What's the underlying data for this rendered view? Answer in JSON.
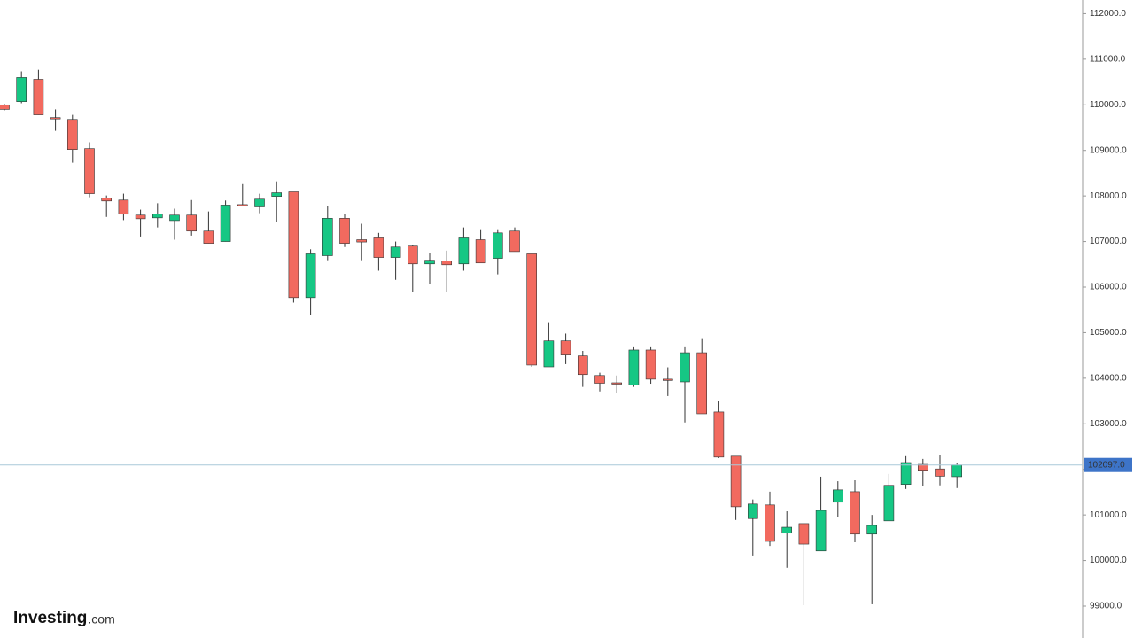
{
  "chart_data": {
    "type": "candlestick",
    "logo": "Investing",
    "logo_suffix": ".com",
    "open": [
      110000,
      110070,
      110560,
      109720,
      109680,
      109040,
      107950,
      107910,
      107580,
      107520,
      107460,
      107580,
      107230,
      107000,
      107810,
      107760,
      107990,
      108090,
      105770,
      106690,
      107510,
      107040,
      107080,
      106650,
      106900,
      106510,
      106570,
      106510,
      107040,
      106630,
      107230,
      106730,
      104250,
      104820,
      104490,
      104060,
      103900,
      103850,
      104620,
      103980,
      103920,
      104560,
      103260,
      102290,
      100920,
      101220,
      100600,
      100810,
      100210,
      101280,
      101510,
      100580,
      100870,
      101670,
      102110,
      102010,
      101840
    ],
    "high": [
      110020,
      110735,
      110770,
      109900,
      109780,
      109180,
      108010,
      108050,
      107700,
      107840,
      107720,
      107910,
      107660,
      107900,
      108260,
      108050,
      108320,
      108090,
      106830,
      107780,
      107600,
      107390,
      107190,
      107000,
      106920,
      106750,
      106800,
      107310,
      107270,
      107270,
      107310,
      106730,
      105230,
      104980,
      104600,
      104120,
      104060,
      104680,
      104680,
      104240,
      104680,
      104860,
      103510,
      102290,
      101340,
      101510,
      101080,
      100810,
      101840,
      101740,
      101760,
      101000,
      101900,
      102290,
      102230,
      102310,
      102150
    ],
    "low": [
      109880,
      110035,
      109780,
      109430,
      108730,
      107970,
      107540,
      107470,
      107110,
      107310,
      107040,
      107130,
      106960,
      107000,
      107770,
      107620,
      107430,
      105660,
      105380,
      106590,
      106880,
      106590,
      106360,
      106160,
      105890,
      106060,
      105900,
      106360,
      106530,
      106280,
      106780,
      104250,
      104250,
      104310,
      103810,
      103710,
      103670,
      103810,
      103880,
      103610,
      103030,
      103220,
      102250,
      100890,
      100110,
      100320,
      99840,
      99020,
      100210,
      100950,
      100400,
      99040,
      100870,
      101570,
      101630,
      101650,
      101590
    ],
    "close": [
      109900,
      110600,
      109780,
      109700,
      109020,
      108050,
      107890,
      107600,
      107500,
      107600,
      107580,
      107230,
      106960,
      107800,
      107790,
      107930,
      108070,
      105770,
      106730,
      107510,
      106960,
      106990,
      106650,
      106880,
      106510,
      106590,
      106490,
      107080,
      106530,
      107190,
      106780,
      104290,
      104820,
      104510,
      104080,
      103890,
      103880,
      104620,
      103980,
      103960,
      104560,
      103220,
      102270,
      101180,
      101240,
      100420,
      100730,
      100360,
      101100,
      101550,
      100580,
      100770,
      101650,
      102150,
      101980,
      101850,
      102097
    ],
    "up_color": "#16c784",
    "down_color": "#f26a5f",
    "ylim": [
      98300,
      112300
    ],
    "yticks": [
      {
        "value": 99000,
        "label": "99000.0"
      },
      {
        "value": 100000,
        "label": "100000.0"
      },
      {
        "value": 101000,
        "label": "101000.0"
      },
      {
        "value": 102000,
        "label": "102000.0"
      },
      {
        "value": 103000,
        "label": "103000.0"
      },
      {
        "value": 104000,
        "label": "104000.0"
      },
      {
        "value": 105000,
        "label": "105000.0"
      },
      {
        "value": 106000,
        "label": "106000.0"
      },
      {
        "value": 107000,
        "label": "107000.0"
      },
      {
        "value": 108000,
        "label": "108000.0"
      },
      {
        "value": 109000,
        "label": "109000.0"
      },
      {
        "value": 110000,
        "label": "110000.0"
      },
      {
        "value": 111000,
        "label": "111000.0"
      },
      {
        "value": 112000,
        "label": "112000.0"
      }
    ],
    "current_price": {
      "value": 102097,
      "label": "102097.0"
    },
    "current_price_color": "#a9c9d9",
    "price_label_color": "#3d74c8"
  }
}
